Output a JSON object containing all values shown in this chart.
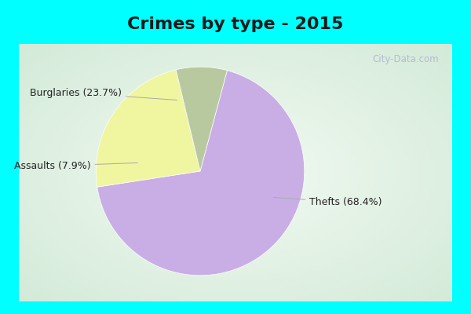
{
  "title": "Crimes by type - 2015",
  "slices": [
    {
      "label": "Thefts",
      "pct": 68.4,
      "color": "#c9aee5"
    },
    {
      "label": "Burglaries",
      "pct": 23.7,
      "color": "#f0f5a0"
    },
    {
      "label": "Assaults",
      "pct": 7.9,
      "color": "#b8c9a0"
    }
  ],
  "bg_outer": "#00ffff",
  "bg_inner": "#d8f0e8",
  "title_color": "#1a1a1a",
  "title_fontsize": 16,
  "label_fontsize": 9,
  "watermark": "City-Data.com",
  "startangle": 75
}
